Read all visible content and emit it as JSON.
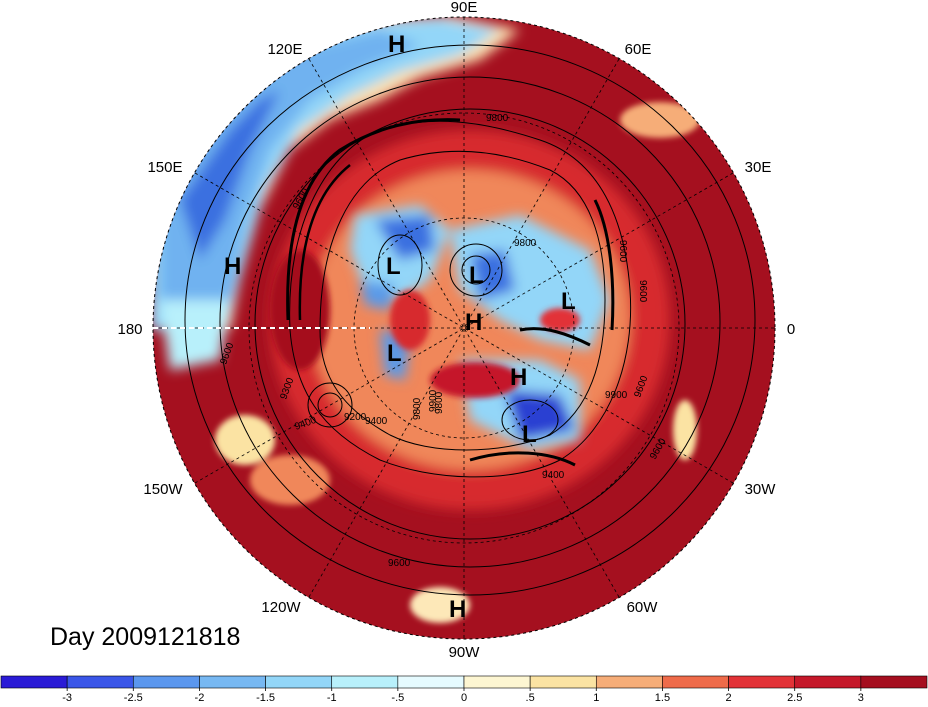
{
  "day_label": "Day 2009121818",
  "longitude_labels": {
    "e90": "90E",
    "e60": "60E",
    "e30": "30E",
    "zero": "0",
    "w30": "30W",
    "w60": "60W",
    "w90": "90W",
    "w120": "120W",
    "w150": "150W",
    "w180": "180",
    "e150": "150E",
    "e120": "120E"
  },
  "contour_labels": [
    "9800",
    "9600",
    "9800",
    "9600",
    "9600",
    "9900",
    "9800",
    "9600",
    "9400",
    "9300",
    "9200",
    "9400",
    "9600",
    "9600",
    "9600",
    "9800",
    "9900",
    "9400"
  ],
  "pressure_centers": [
    "H",
    "H",
    "L",
    "L",
    "L",
    "H",
    "L",
    "H",
    "L",
    "H"
  ],
  "colorbar": {
    "ticks": [
      "-3",
      "-2.5",
      "-2",
      "-1.5",
      "-1",
      "-.5",
      "0",
      ".5",
      "1",
      "1.5",
      "2",
      "2.5",
      "3"
    ],
    "colors": [
      "#2a1bd6",
      "#3a56e8",
      "#5b97ee",
      "#77b8f2",
      "#93d6f8",
      "#b8f0fb",
      "#e6fbff",
      "#fdf6d2",
      "#fbe3a3",
      "#f6ad78",
      "#ef6b4a",
      "#e23237",
      "#c5182a",
      "#a50e1f"
    ]
  },
  "colors": {
    "deep_red": "#a5101f",
    "red": "#d72a2f",
    "orange": "#f0875a",
    "pale": "#fde8b8",
    "light_blue": "#a8e3f7",
    "blue": "#5a9ae8",
    "deep_blue": "#2a3fd2"
  }
}
